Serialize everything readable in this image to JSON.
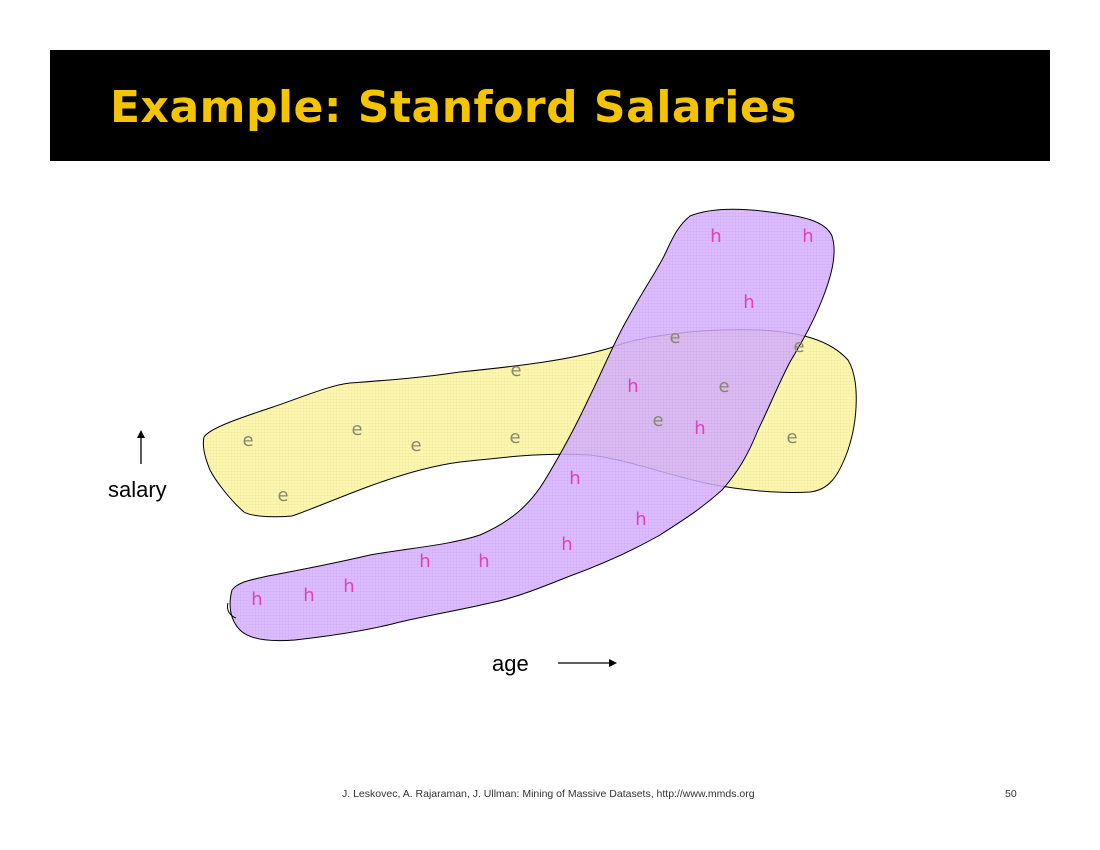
{
  "slide": {
    "title": "Example: Stanford Salaries",
    "footer_citation": "J. Leskovec, A. Rajaraman, J. Ullman: Mining of Massive Datasets, http://www.mmds.org",
    "slide_number": "50"
  },
  "diagram": {
    "y_axis_label": "salary",
    "x_axis_label": "age",
    "colors": {
      "e_region_fill": "#fbf7b0",
      "h_region_fill": "#cc99ff",
      "e_text": "#8a8a6a",
      "h_text": "#e040b8"
    },
    "e_points": [
      "e",
      "e",
      "e",
      "e",
      "e",
      "e",
      "e",
      "e",
      "e",
      "e",
      "e",
      "e"
    ],
    "h_points": [
      "h",
      "h",
      "h",
      "h",
      "h",
      "h",
      "h",
      "h",
      "h",
      "h",
      "h",
      "h",
      "h",
      "h"
    ]
  }
}
